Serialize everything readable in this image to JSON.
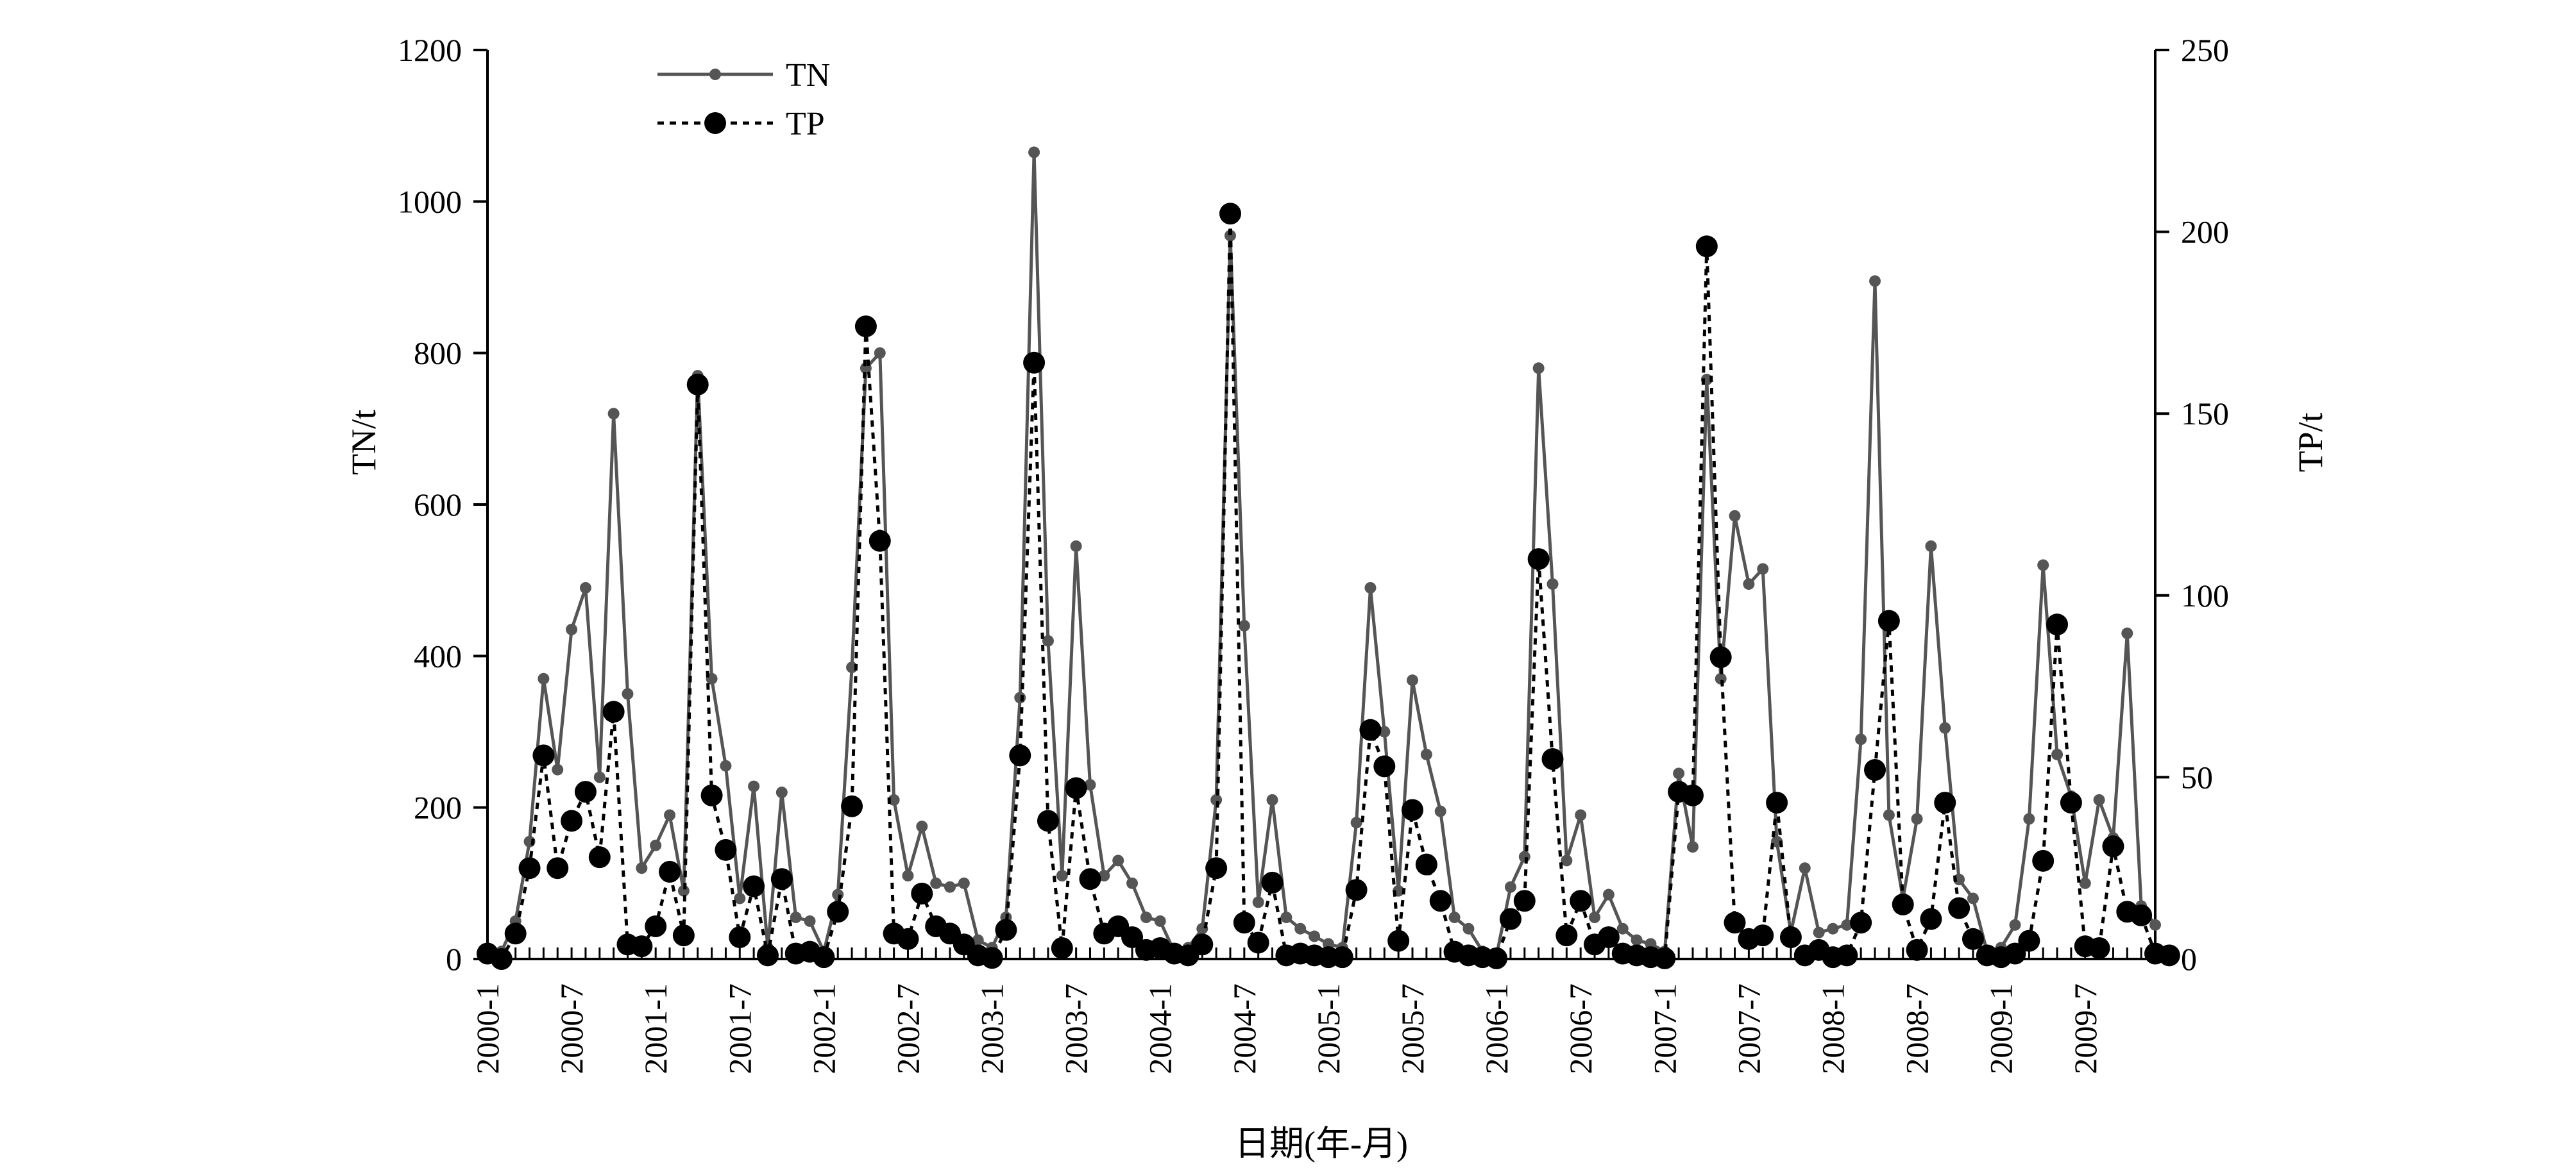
{
  "chart_data": {
    "type": "line",
    "title": "",
    "xlabel": "日期(年-月)",
    "ylabel_left": "TN/t",
    "ylabel_right": "TP/t",
    "ylim_left": [
      0,
      1200
    ],
    "ylim_right": [
      0,
      250
    ],
    "yticks_left": [
      "0",
      "200",
      "400",
      "600",
      "800",
      "1000",
      "1200"
    ],
    "yticks_right": [
      "0",
      "50",
      "100",
      "150",
      "200",
      "250"
    ],
    "grid": false,
    "legend_position": "top-left",
    "x_tick_labels": [
      "2000-1",
      "2000-7",
      "2001-1",
      "2001-7",
      "2002-1",
      "2002-7",
      "2003-1",
      "2003-7",
      "2004-1",
      "2004-7",
      "2005-1",
      "2005-7",
      "2006-1",
      "2006-7",
      "2007-1",
      "2007-7",
      "2008-1",
      "2008-7",
      "2009-1",
      "2009-7"
    ],
    "month_count": 120,
    "series": [
      {
        "name": "TN",
        "axis": "left",
        "style": "solid line, small grey dots",
        "color": "#555555",
        "values": [
          5,
          10,
          50,
          155,
          370,
          250,
          435,
          490,
          240,
          720,
          350,
          120,
          150,
          190,
          90,
          770,
          370,
          255,
          80,
          228,
          15,
          220,
          55,
          50,
          10,
          85,
          385,
          780,
          800,
          210,
          110,
          175,
          100,
          95,
          100,
          25,
          15,
          55,
          345,
          1065,
          420,
          110,
          545,
          230,
          110,
          130,
          100,
          55,
          50,
          10,
          15,
          40,
          210,
          955,
          440,
          75,
          210,
          55,
          40,
          30,
          20,
          15,
          180,
          490,
          300,
          90,
          368,
          270,
          195,
          55,
          40,
          10,
          5,
          95,
          135,
          780,
          495,
          130,
          190,
          55,
          85,
          40,
          25,
          20,
          10,
          245,
          148,
          765,
          370,
          585,
          495,
          515,
          155,
          35,
          120,
          35,
          40,
          45,
          290,
          895,
          190,
          80,
          185,
          545,
          305,
          105,
          80,
          10,
          15,
          45,
          185,
          520,
          270,
          215,
          100,
          210,
          160,
          430,
          70,
          45
        ]
      },
      {
        "name": "TP",
        "axis": "right",
        "style": "dotted line, large black dots",
        "color": "#000000",
        "values": [
          1.5,
          0,
          7,
          25,
          56,
          25,
          38,
          46,
          28,
          68,
          4,
          3.5,
          9,
          24,
          6.5,
          158,
          45,
          30,
          6,
          20,
          1,
          22,
          1.5,
          2,
          0.5,
          13,
          42,
          174,
          115,
          7,
          5.5,
          18,
          9,
          7,
          4,
          1,
          0.3,
          8,
          56,
          164,
          38,
          3,
          47,
          22,
          7,
          9,
          6,
          2.5,
          3,
          1.5,
          1,
          4,
          25,
          205,
          10,
          4.5,
          21,
          1,
          1.5,
          1,
          0.5,
          0.5,
          19,
          63,
          53,
          5,
          41,
          26,
          16,
          2,
          1,
          0.5,
          0.2,
          11,
          16,
          110,
          55,
          6.5,
          16,
          4,
          6,
          1.5,
          1,
          0.5,
          0.2,
          46,
          45,
          196,
          83,
          10,
          5.5,
          6.5,
          43,
          6,
          1,
          2.5,
          0.5,
          1,
          10,
          52,
          93,
          15,
          2.5,
          11,
          43,
          14,
          5.5,
          1,
          0.5,
          1.5,
          5,
          27,
          92,
          43,
          3.5,
          3,
          31,
          13,
          12,
          1.5,
          1
        ]
      }
    ]
  }
}
